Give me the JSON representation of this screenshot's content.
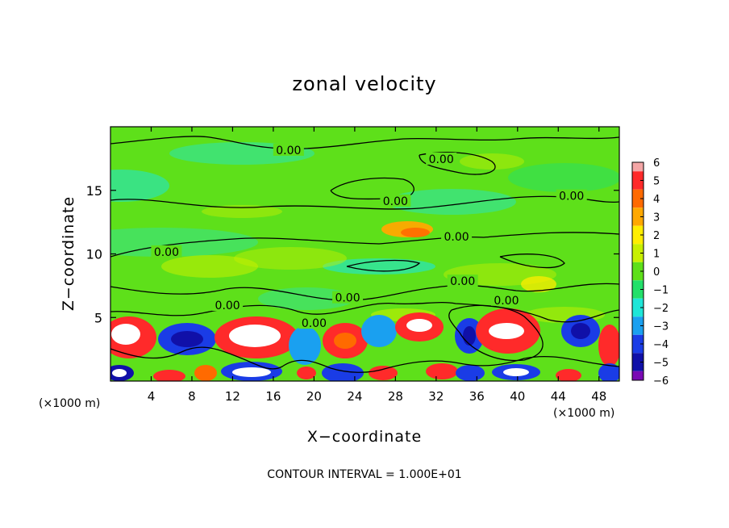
{
  "chart_data": {
    "type": "heatmap",
    "title": "zonal velocity",
    "xlabel": "X−coordinate",
    "ylabel": "Z−coordinate",
    "x_unit_left": "(×1000 m)",
    "x_unit_right": "(×1000 m)",
    "xlim": [
      0,
      50
    ],
    "ylim": [
      0,
      20
    ],
    "x_ticks": [
      "4",
      "8",
      "12",
      "16",
      "20",
      "24",
      "28",
      "32",
      "36",
      "40",
      "44",
      "48"
    ],
    "x_tick_values": [
      4,
      8,
      12,
      16,
      20,
      24,
      28,
      32,
      36,
      40,
      44,
      48
    ],
    "y_ticks": [
      "5",
      "10",
      "15"
    ],
    "y_tick_values": [
      5,
      10,
      15
    ],
    "colorbar": {
      "range": [
        -6,
        6
      ],
      "ticks": [
        "6",
        "5",
        "4",
        "3",
        "2",
        "1",
        "0",
        "−1",
        "−2",
        "−3",
        "−4",
        "−5",
        "−6"
      ],
      "tick_values": [
        6,
        5,
        4,
        3,
        2,
        1,
        0,
        -1,
        -2,
        -3,
        -4,
        -5,
        -6
      ],
      "colors": [
        "#f4a6a6",
        "#ff2a2a",
        "#ff6a00",
        "#ffa800",
        "#ffee00",
        "#c8f000",
        "#5ee01a",
        "#22e06a",
        "#1ee6d8",
        "#1aa0f0",
        "#1a3ce6",
        "#1010a8",
        "#7a0ab4"
      ]
    },
    "contour_label": "0.00",
    "contour_label_positions": [
      [
        17.5,
        18.1
      ],
      [
        28,
        14.1
      ],
      [
        5.5,
        10.1
      ],
      [
        11.5,
        5.9
      ],
      [
        20,
        4.5
      ],
      [
        23.3,
        6.5
      ],
      [
        32.5,
        17.4
      ],
      [
        34,
        11.3
      ],
      [
        34.6,
        7.8
      ],
      [
        38.9,
        6.3
      ],
      [
        45.3,
        14.5
      ]
    ],
    "footer": "CONTOUR INTERVAL = 1.000E+01"
  }
}
